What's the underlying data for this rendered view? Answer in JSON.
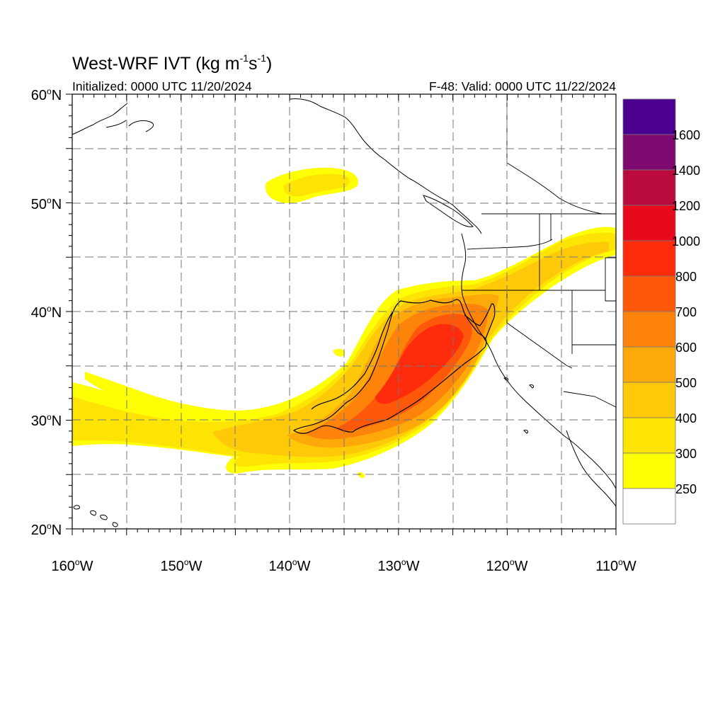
{
  "title": {
    "main": "West-WRF IVT (kg m",
    "unit_exp1": "-1",
    "unit_mid": "s",
    "unit_exp2": "-1",
    "unit_close": ")"
  },
  "subtitle_left": "Initialized: 0000 UTC 11/20/2024",
  "subtitle_right": "F-48: Valid: 0000 UTC 11/22/2024",
  "lat_labels": [
    {
      "deg": "60",
      "hem": "N"
    },
    {
      "deg": "50",
      "hem": "N"
    },
    {
      "deg": "40",
      "hem": "N"
    },
    {
      "deg": "30",
      "hem": "N"
    },
    {
      "deg": "20",
      "hem": "N"
    }
  ],
  "lon_labels": [
    {
      "deg": "160",
      "hem": "W"
    },
    {
      "deg": "150",
      "hem": "W"
    },
    {
      "deg": "140",
      "hem": "W"
    },
    {
      "deg": "130",
      "hem": "W"
    },
    {
      "deg": "120",
      "hem": "W"
    },
    {
      "deg": "110",
      "hem": "W"
    }
  ],
  "colorbar": {
    "labels": [
      "1600",
      "1400",
      "1200",
      "1000",
      "800",
      "700",
      "600",
      "500",
      "400",
      "300",
      "250"
    ],
    "colors_top_to_bottom": [
      "#4b0090",
      "#7e0a70",
      "#bb0a3e",
      "#e8091a",
      "#fe2c0c",
      "#fe590b",
      "#fe830b",
      "#fea90a",
      "#fec909",
      "#fee404",
      "#fefe04",
      "#ffffff"
    ]
  },
  "map": {
    "extent": {
      "lon_min": -160,
      "lon_max": -110,
      "lat_min": 20,
      "lat_max": 60
    },
    "coast_color": "#000000",
    "gridline_color": "#777777",
    "fill_colors": {
      "ivt_250": "#fefe04",
      "ivt_300": "#fee404",
      "ivt_400": "#fec909",
      "ivt_500": "#fea90a",
      "ivt_600": "#fe830b",
      "ivt_700": "#fe590b",
      "ivt_800": "#fe2c0c"
    }
  }
}
